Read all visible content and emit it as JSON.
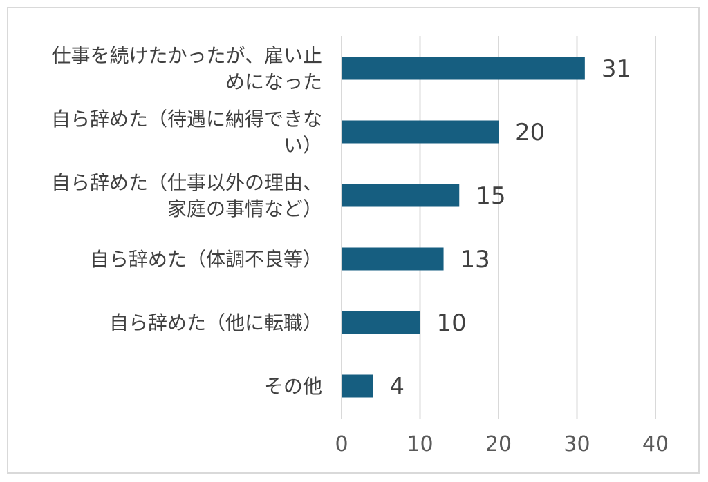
{
  "chart_data": {
    "type": "bar",
    "orientation": "horizontal",
    "categories": [
      [
        "仕事を続けたかったが、雇い止",
        "めになった"
      ],
      [
        "自ら辞めた（待遇に納得できな",
        "い）"
      ],
      [
        "自ら辞めた（仕事以外の理由、",
        "家庭の事情など）"
      ],
      [
        "自ら辞めた（体調不良等）"
      ],
      [
        "自ら辞めた（他に転職）"
      ],
      [
        "その他"
      ]
    ],
    "values": [
      31,
      20,
      15,
      13,
      10,
      4
    ],
    "value_labels": [
      "31",
      "20",
      "15",
      "13",
      "10",
      "4"
    ],
    "xlim": [
      0,
      40
    ],
    "xticks": [
      0,
      10,
      20,
      30,
      40
    ],
    "xtick_labels": [
      "0",
      "10",
      "20",
      "30",
      "40"
    ],
    "grid": true,
    "colors": {
      "bar": "#165e80",
      "grid": "#d9d9d9",
      "frame": "#d9d9d9"
    }
  }
}
